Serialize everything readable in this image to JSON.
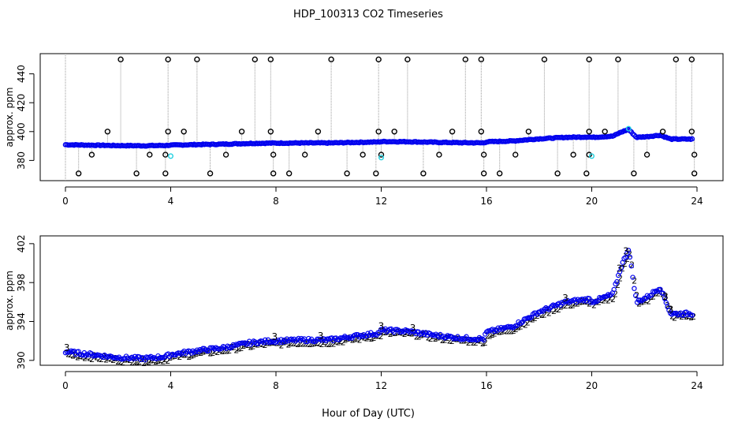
{
  "title": "HDP_100313  CO2 Timeseries",
  "xlabel": "Hour of Day (UTC)",
  "colors": {
    "blue": "#0000ee",
    "cyan": "#22d0e0",
    "green": "#00bb00",
    "black": "#000000",
    "grey": "#999999"
  },
  "chart_data": [
    {
      "type": "scatter",
      "ylabel": "approx. ppm",
      "xlim": [
        0,
        24
      ],
      "ylim": [
        366,
        454
      ],
      "xticks": [
        0,
        4,
        8,
        12,
        16,
        20,
        24
      ],
      "yticks": [
        380,
        400,
        420,
        440
      ],
      "baseline": [
        [
          0,
          390.9
        ],
        [
          1,
          390.6
        ],
        [
          2,
          390.3
        ],
        [
          3,
          390.2
        ],
        [
          3.8,
          390.4
        ],
        [
          4,
          390.6
        ],
        [
          5,
          391.0
        ],
        [
          6,
          391.3
        ],
        [
          7,
          391.8
        ],
        [
          7.8,
          392.0
        ],
        [
          8,
          392.0
        ],
        [
          9,
          392.1
        ],
        [
          10,
          392.1
        ],
        [
          11,
          392.5
        ],
        [
          11.9,
          392.8
        ],
        [
          12,
          393.1
        ],
        [
          13,
          393.0
        ],
        [
          14,
          392.6
        ],
        [
          15,
          392.3
        ],
        [
          15.9,
          392.2
        ],
        [
          16,
          392.9
        ],
        [
          17,
          393.5
        ],
        [
          18,
          395.0
        ],
        [
          19,
          396.0
        ],
        [
          19.9,
          396.3
        ],
        [
          20,
          396.0
        ],
        [
          20.8,
          396.8
        ],
        [
          21.1,
          399.5
        ],
        [
          21.4,
          401.5
        ],
        [
          21.7,
          396.0
        ],
        [
          22.1,
          396.5
        ],
        [
          22.6,
          397.5
        ],
        [
          23,
          394.8
        ],
        [
          23.7,
          394.8
        ]
      ],
      "outliers_high": [
        2.1,
        3.9,
        5.0,
        7.2,
        7.8,
        10.1,
        11.9,
        13.0,
        15.2,
        15.8,
        18.2,
        19.9,
        21.0,
        23.2,
        23.8
      ],
      "outliers_high_value": 450,
      "outliers_mid": [
        1.6,
        3.9,
        4.5,
        6.7,
        7.8,
        9.6,
        11.9,
        12.5,
        14.7,
        15.8,
        17.6,
        19.9,
        20.5,
        22.7,
        23.8
      ],
      "outliers_mid_value": 400,
      "outliers_low": [
        0.5,
        2.7,
        3.8,
        5.5,
        7.9,
        8.5,
        10.7,
        11.8,
        13.6,
        15.9,
        16.5,
        18.7,
        19.8,
        21.6,
        23.9
      ],
      "outliers_low_value": 371,
      "outliers_lowmid": [
        1.0,
        3.2,
        3.8,
        6.1,
        7.9,
        9.1,
        11.3,
        12.0,
        14.2,
        15.9,
        17.1,
        19.3,
        19.9,
        22.1,
        23.9
      ],
      "outliers_lowmid_value": 384,
      "cyan_points": [
        [
          4.0,
          383
        ],
        [
          12.0,
          382
        ],
        [
          20.0,
          383
        ],
        [
          21.4,
          402
        ]
      ]
    },
    {
      "type": "scatter",
      "ylabel": "approx. ppm",
      "xlim": [
        0,
        24
      ],
      "ylim": [
        389.5,
        402.8
      ],
      "xticks": [
        0,
        4,
        8,
        12,
        16,
        20,
        24
      ],
      "yticks": [
        390,
        394,
        398,
        402
      ],
      "markers": [
        "3",
        "2"
      ],
      "baseline": [
        [
          0,
          390.9
        ],
        [
          1,
          390.6
        ],
        [
          2,
          390.3
        ],
        [
          3,
          390.2
        ],
        [
          3.8,
          390.4
        ],
        [
          4,
          390.6
        ],
        [
          5,
          391.0
        ],
        [
          6,
          391.3
        ],
        [
          7,
          391.8
        ],
        [
          7.8,
          392.0
        ],
        [
          8,
          392.0
        ],
        [
          9,
          392.1
        ],
        [
          10,
          392.1
        ],
        [
          11,
          392.5
        ],
        [
          11.9,
          392.8
        ],
        [
          12,
          393.1
        ],
        [
          13,
          393.0
        ],
        [
          14,
          392.6
        ],
        [
          15,
          392.3
        ],
        [
          15.9,
          392.2
        ],
        [
          16,
          392.9
        ],
        [
          17,
          393.5
        ],
        [
          18,
          395.0
        ],
        [
          19,
          396.0
        ],
        [
          19.9,
          396.3
        ],
        [
          20,
          396.0
        ],
        [
          20.8,
          396.8
        ],
        [
          21.1,
          399.5
        ],
        [
          21.4,
          401.5
        ],
        [
          21.7,
          396.0
        ],
        [
          22.1,
          396.5
        ],
        [
          22.6,
          397.5
        ],
        [
          23,
          394.8
        ],
        [
          23.7,
          394.8
        ]
      ]
    }
  ]
}
